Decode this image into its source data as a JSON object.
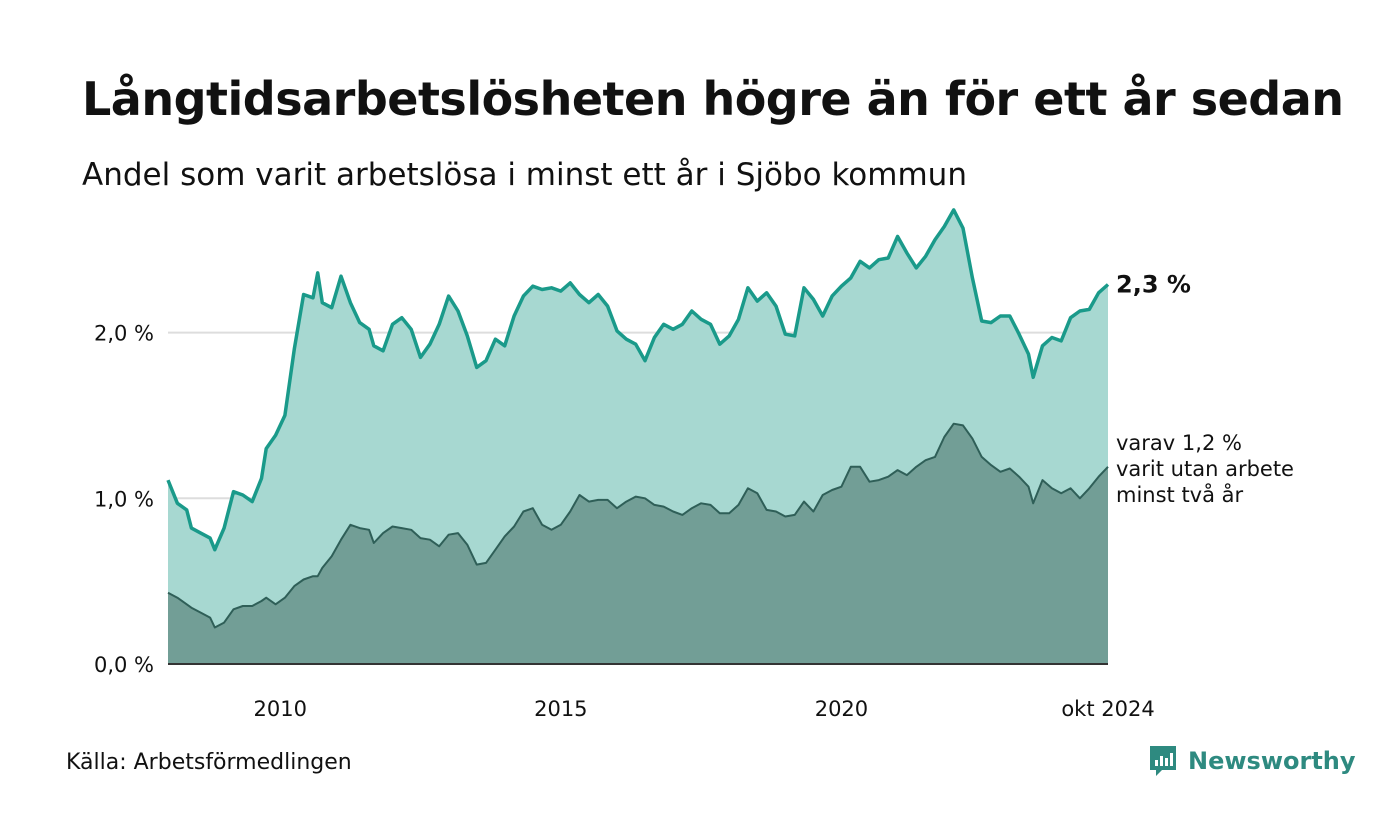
{
  "title": "Långtidsarbetslösheten högre än för ett år sedan",
  "subtitle": "Andel som varit arbetslösa i minst ett år i Sjöbo kommun",
  "source": "Källa: Arbetsförmedlingen",
  "brand": "Newsworthy",
  "end_label_total": "2,3 %",
  "end_label_two_years": [
    "varav 1,2 %",
    "varit utan arbete",
    "minst två år"
  ],
  "colors": {
    "total_line": "#1a9a8a",
    "total_fill": "#a7d8d1",
    "two_year_line": "#2f5f58",
    "two_year_fill": "#729e96",
    "gridline": "#dddddd",
    "brand": "#2e8a80"
  },
  "chart_data": {
    "type": "area",
    "title": "Långtidsarbetslösheten högre än för ett år sedan",
    "subtitle": "Andel som varit arbetslösa i minst ett år i Sjöbo kommun",
    "xlabel": "",
    "ylabel": "",
    "x_range": [
      "2008-01",
      "2024-10"
    ],
    "ylim": [
      0,
      2.8
    ],
    "y_ticks": [
      {
        "value": 0,
        "label": "0,0 %"
      },
      {
        "value": 1,
        "label": "1,0 %"
      },
      {
        "value": 2,
        "label": "2,0 %"
      }
    ],
    "x_ticks": [
      {
        "value": "2010-01",
        "label": "2010"
      },
      {
        "value": "2015-01",
        "label": "2015"
      },
      {
        "value": "2020-01",
        "label": "2020"
      },
      {
        "value": "2024-10",
        "label": "okt 2024"
      }
    ],
    "grid": true,
    "legend": "none",
    "series": [
      {
        "points": [
          [
            "2008-01",
            1.11
          ],
          [
            "2008-03",
            0.97
          ],
          [
            "2008-05",
            0.93
          ],
          [
            "2008-06",
            0.82
          ],
          [
            "2008-08",
            0.79
          ],
          [
            "2008-10",
            0.76
          ],
          [
            "2008-11",
            0.69
          ],
          [
            "2009-01",
            0.82
          ],
          [
            "2009-03",
            1.04
          ],
          [
            "2009-05",
            1.02
          ],
          [
            "2009-07",
            0.98
          ],
          [
            "2009-09",
            1.12
          ],
          [
            "2009-10",
            1.3
          ],
          [
            "2009-12",
            1.38
          ],
          [
            "2010-02",
            1.5
          ],
          [
            "2010-04",
            1.9
          ],
          [
            "2010-06",
            2.23
          ],
          [
            "2010-08",
            2.21
          ],
          [
            "2010-09",
            2.36
          ],
          [
            "2010-10",
            2.18
          ],
          [
            "2010-12",
            2.15
          ],
          [
            "2011-02",
            2.34
          ],
          [
            "2011-04",
            2.18
          ],
          [
            "2011-06",
            2.06
          ],
          [
            "2011-08",
            2.02
          ],
          [
            "2011-09",
            1.92
          ],
          [
            "2011-11",
            1.89
          ],
          [
            "2012-01",
            2.05
          ],
          [
            "2012-03",
            2.09
          ],
          [
            "2012-05",
            2.02
          ],
          [
            "2012-07",
            1.85
          ],
          [
            "2012-09",
            1.93
          ],
          [
            "2012-11",
            2.05
          ],
          [
            "2013-01",
            2.22
          ],
          [
            "2013-03",
            2.13
          ],
          [
            "2013-05",
            1.98
          ],
          [
            "2013-07",
            1.79
          ],
          [
            "2013-09",
            1.83
          ],
          [
            "2013-11",
            1.96
          ],
          [
            "2014-01",
            1.92
          ],
          [
            "2014-03",
            2.1
          ],
          [
            "2014-05",
            2.22
          ],
          [
            "2014-07",
            2.28
          ],
          [
            "2014-09",
            2.26
          ],
          [
            "2014-11",
            2.27
          ],
          [
            "2015-01",
            2.25
          ],
          [
            "2015-03",
            2.3
          ],
          [
            "2015-05",
            2.23
          ],
          [
            "2015-07",
            2.18
          ],
          [
            "2015-09",
            2.23
          ],
          [
            "2015-11",
            2.16
          ],
          [
            "2016-01",
            2.01
          ],
          [
            "2016-03",
            1.96
          ],
          [
            "2016-05",
            1.93
          ],
          [
            "2016-07",
            1.83
          ],
          [
            "2016-09",
            1.97
          ],
          [
            "2016-11",
            2.05
          ],
          [
            "2017-01",
            2.02
          ],
          [
            "2017-03",
            2.05
          ],
          [
            "2017-05",
            2.13
          ],
          [
            "2017-07",
            2.08
          ],
          [
            "2017-09",
            2.05
          ],
          [
            "2017-11",
            1.93
          ],
          [
            "2018-01",
            1.98
          ],
          [
            "2018-03",
            2.08
          ],
          [
            "2018-05",
            2.27
          ],
          [
            "2018-07",
            2.19
          ],
          [
            "2018-09",
            2.24
          ],
          [
            "2018-11",
            2.16
          ],
          [
            "2019-01",
            1.99
          ],
          [
            "2019-03",
            1.98
          ],
          [
            "2019-05",
            2.27
          ],
          [
            "2019-07",
            2.2
          ],
          [
            "2019-09",
            2.1
          ],
          [
            "2019-11",
            2.22
          ],
          [
            "2020-01",
            2.28
          ],
          [
            "2020-03",
            2.33
          ],
          [
            "2020-05",
            2.43
          ],
          [
            "2020-07",
            2.39
          ],
          [
            "2020-09",
            2.44
          ],
          [
            "2020-11",
            2.45
          ],
          [
            "2021-01",
            2.58
          ],
          [
            "2021-03",
            2.48
          ],
          [
            "2021-05",
            2.39
          ],
          [
            "2021-07",
            2.46
          ],
          [
            "2021-09",
            2.56
          ],
          [
            "2021-11",
            2.64
          ],
          [
            "2022-01",
            2.74
          ],
          [
            "2022-03",
            2.63
          ],
          [
            "2022-05",
            2.33
          ],
          [
            "2022-07",
            2.07
          ],
          [
            "2022-09",
            2.06
          ],
          [
            "2022-11",
            2.1
          ],
          [
            "2023-01",
            2.1
          ],
          [
            "2023-03",
            1.99
          ],
          [
            "2023-05",
            1.87
          ],
          [
            "2023-06",
            1.73
          ],
          [
            "2023-08",
            1.92
          ],
          [
            "2023-10",
            1.97
          ],
          [
            "2023-12",
            1.95
          ],
          [
            "2024-02",
            2.09
          ],
          [
            "2024-04",
            2.13
          ],
          [
            "2024-06",
            2.14
          ],
          [
            "2024-08",
            2.24
          ],
          [
            "2024-10",
            2.29
          ]
        ]
      },
      {
        "points": [
          [
            "2008-01",
            0.43
          ],
          [
            "2008-03",
            0.4
          ],
          [
            "2008-05",
            0.36
          ],
          [
            "2008-06",
            0.34
          ],
          [
            "2008-08",
            0.31
          ],
          [
            "2008-10",
            0.28
          ],
          [
            "2008-11",
            0.22
          ],
          [
            "2009-01",
            0.25
          ],
          [
            "2009-03",
            0.33
          ],
          [
            "2009-05",
            0.35
          ],
          [
            "2009-07",
            0.35
          ],
          [
            "2009-09",
            0.38
          ],
          [
            "2009-10",
            0.4
          ],
          [
            "2009-12",
            0.36
          ],
          [
            "2010-02",
            0.4
          ],
          [
            "2010-04",
            0.47
          ],
          [
            "2010-06",
            0.51
          ],
          [
            "2010-08",
            0.53
          ],
          [
            "2010-09",
            0.53
          ],
          [
            "2010-10",
            0.58
          ],
          [
            "2010-12",
            0.65
          ],
          [
            "2011-02",
            0.75
          ],
          [
            "2011-04",
            0.84
          ],
          [
            "2011-06",
            0.82
          ],
          [
            "2011-08",
            0.81
          ],
          [
            "2011-09",
            0.73
          ],
          [
            "2011-11",
            0.79
          ],
          [
            "2012-01",
            0.83
          ],
          [
            "2012-03",
            0.82
          ],
          [
            "2012-05",
            0.81
          ],
          [
            "2012-07",
            0.76
          ],
          [
            "2012-09",
            0.75
          ],
          [
            "2012-11",
            0.71
          ],
          [
            "2013-01",
            0.78
          ],
          [
            "2013-03",
            0.79
          ],
          [
            "2013-05",
            0.72
          ],
          [
            "2013-07",
            0.6
          ],
          [
            "2013-09",
            0.61
          ],
          [
            "2013-11",
            0.69
          ],
          [
            "2014-01",
            0.77
          ],
          [
            "2014-03",
            0.83
          ],
          [
            "2014-05",
            0.92
          ],
          [
            "2014-07",
            0.94
          ],
          [
            "2014-09",
            0.84
          ],
          [
            "2014-11",
            0.81
          ],
          [
            "2015-01",
            0.84
          ],
          [
            "2015-03",
            0.92
          ],
          [
            "2015-05",
            1.02
          ],
          [
            "2015-07",
            0.98
          ],
          [
            "2015-09",
            0.99
          ],
          [
            "2015-11",
            0.99
          ],
          [
            "2016-01",
            0.94
          ],
          [
            "2016-03",
            0.98
          ],
          [
            "2016-05",
            1.01
          ],
          [
            "2016-07",
            1.0
          ],
          [
            "2016-09",
            0.96
          ],
          [
            "2016-11",
            0.95
          ],
          [
            "2017-01",
            0.92
          ],
          [
            "2017-03",
            0.9
          ],
          [
            "2017-05",
            0.94
          ],
          [
            "2017-07",
            0.97
          ],
          [
            "2017-09",
            0.96
          ],
          [
            "2017-11",
            0.91
          ],
          [
            "2018-01",
            0.91
          ],
          [
            "2018-03",
            0.96
          ],
          [
            "2018-05",
            1.06
          ],
          [
            "2018-07",
            1.03
          ],
          [
            "2018-09",
            0.93
          ],
          [
            "2018-11",
            0.92
          ],
          [
            "2019-01",
            0.89
          ],
          [
            "2019-03",
            0.9
          ],
          [
            "2019-05",
            0.98
          ],
          [
            "2019-07",
            0.92
          ],
          [
            "2019-09",
            1.02
          ],
          [
            "2019-11",
            1.05
          ],
          [
            "2020-01",
            1.07
          ],
          [
            "2020-03",
            1.19
          ],
          [
            "2020-05",
            1.19
          ],
          [
            "2020-07",
            1.1
          ],
          [
            "2020-09",
            1.11
          ],
          [
            "2020-11",
            1.13
          ],
          [
            "2021-01",
            1.17
          ],
          [
            "2021-03",
            1.14
          ],
          [
            "2021-05",
            1.19
          ],
          [
            "2021-07",
            1.23
          ],
          [
            "2021-09",
            1.25
          ],
          [
            "2021-11",
            1.37
          ],
          [
            "2022-01",
            1.45
          ],
          [
            "2022-03",
            1.44
          ],
          [
            "2022-05",
            1.36
          ],
          [
            "2022-07",
            1.25
          ],
          [
            "2022-09",
            1.2
          ],
          [
            "2022-11",
            1.16
          ],
          [
            "2023-01",
            1.18
          ],
          [
            "2023-03",
            1.13
          ],
          [
            "2023-05",
            1.07
          ],
          [
            "2023-06",
            0.97
          ],
          [
            "2023-08",
            1.11
          ],
          [
            "2023-10",
            1.06
          ],
          [
            "2023-12",
            1.03
          ],
          [
            "2024-02",
            1.06
          ],
          [
            "2024-04",
            1.0
          ],
          [
            "2024-06",
            1.06
          ],
          [
            "2024-08",
            1.13
          ],
          [
            "2024-10",
            1.19
          ]
        ]
      }
    ]
  }
}
